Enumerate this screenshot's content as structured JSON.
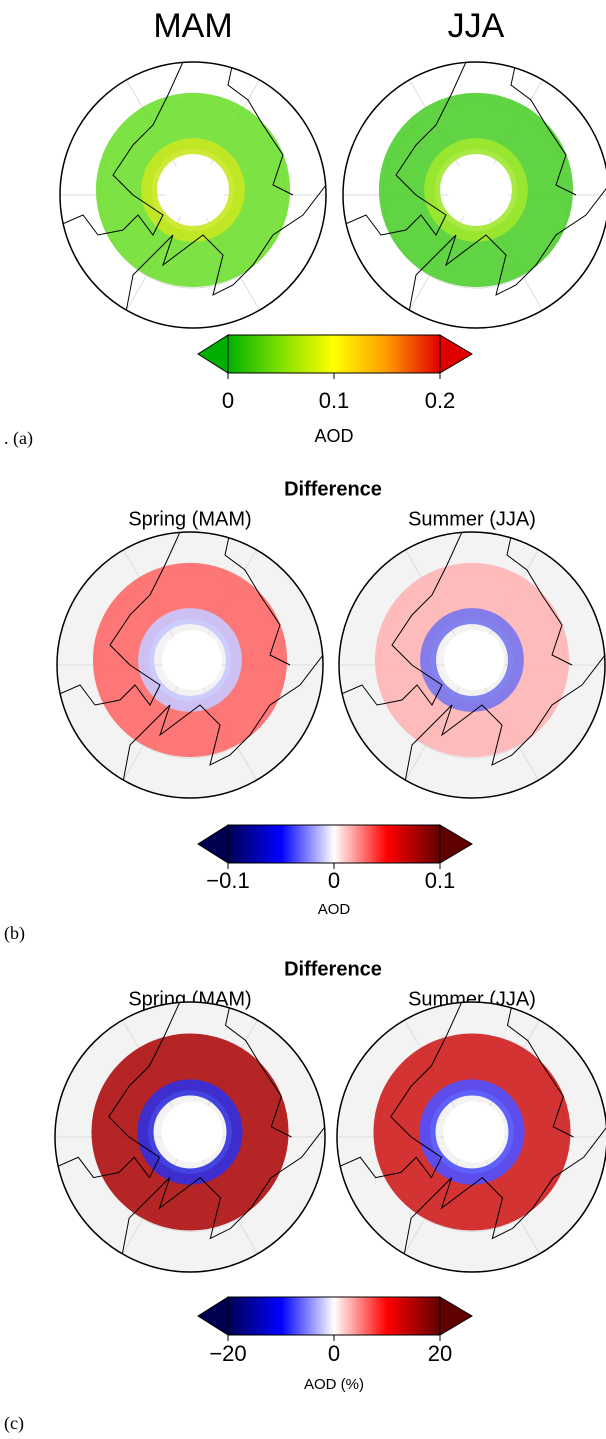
{
  "panels": [
    {
      "label": ". (a)",
      "map_titles": [
        "MAM",
        "JJA"
      ],
      "colorbar": {
        "label": "AOD",
        "lim": [
          0,
          0.2
        ],
        "ticks": [
          0,
          0.1,
          0.2
        ],
        "colors": [
          "#00b000",
          "#80e000",
          "#ffff00",
          "#ff9900",
          "#e00000"
        ]
      }
    },
    {
      "label": "(b)",
      "title": "Difference",
      "map_titles": [
        "Spring (MAM)",
        "Summer (JJA)"
      ],
      "colorbar": {
        "label": "AOD",
        "lim": [
          -0.1,
          0.1
        ],
        "ticks": [
          {
            "value": -0.1,
            "label": "−0.1"
          },
          0,
          0.1
        ],
        "colors": [
          "#000050",
          "#0000ff",
          "#ffffff",
          "#ff0000",
          "#600000"
        ]
      }
    },
    {
      "label": "(c)",
      "title": "Difference",
      "map_titles": [
        "Spring (MAM)",
        "Summer (JJA)"
      ],
      "colorbar": {
        "label": "AOD (%)",
        "lim": [
          -20,
          20
        ],
        "ticks": [
          {
            "value": -20,
            "label": "−20"
          },
          0,
          20
        ],
        "colors": [
          "#000050",
          "#0000ff",
          "#ffffff",
          "#ff0000",
          "#600000"
        ]
      }
    }
  ]
}
